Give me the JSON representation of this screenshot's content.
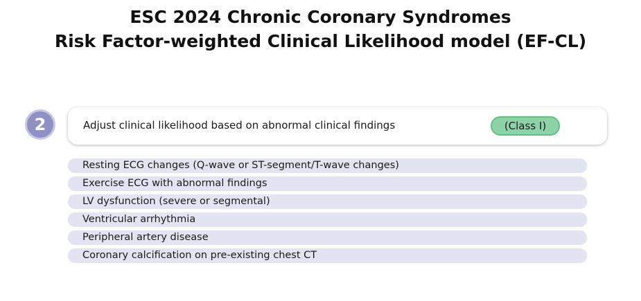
{
  "title": {
    "line1": "ESC 2024 Chronic Coronary Syndromes",
    "line2": "Risk Factor-weighted Clinical Likelihood model (EF-CL)"
  },
  "step": {
    "number": "2",
    "heading": "Adjust clinical likelihood based on abnormal clinical findings",
    "class_label": "(Class I)"
  },
  "findings": [
    "Resting ECG changes (Q-wave or ST-segment/T-wave changes)",
    "Exercise ECG with abnormal findings",
    "LV dysfunction (severe or segmental)",
    "Ventricular arrhythmia",
    "Peripheral artery disease",
    "Coronary calcification on pre-existing chest CT"
  ],
  "colors": {
    "step_circle": "#8f90c4",
    "class_badge": "#8ed3a8",
    "finding_row": "#e3e4f2"
  }
}
